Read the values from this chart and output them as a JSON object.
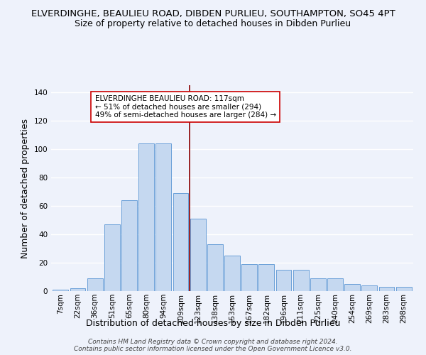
{
  "title": "ELVERDINGHE, BEAULIEU ROAD, DIBDEN PURLIEU, SOUTHAMPTON, SO45 4PT",
  "subtitle": "Size of property relative to detached houses in Dibden Purlieu",
  "xlabel": "Distribution of detached houses by size in Dibden Purlieu",
  "ylabel": "Number of detached properties",
  "footnote1": "Contains HM Land Registry data © Crown copyright and database right 2024.",
  "footnote2": "Contains public sector information licensed under the Open Government Licence v3.0.",
  "bar_labels": [
    "7sqm",
    "22sqm",
    "36sqm",
    "51sqm",
    "65sqm",
    "80sqm",
    "94sqm",
    "109sqm",
    "123sqm",
    "138sqm",
    "153sqm",
    "167sqm",
    "182sqm",
    "196sqm",
    "211sqm",
    "225sqm",
    "240sqm",
    "254sqm",
    "269sqm",
    "283sqm",
    "298sqm"
  ],
  "bar_values": [
    1,
    2,
    9,
    47,
    64,
    104,
    104,
    69,
    51,
    33,
    25,
    19,
    19,
    15,
    15,
    9,
    9,
    5,
    4,
    3,
    3
  ],
  "bar_color": "#c5d8f0",
  "bar_edgecolor": "#6a9fd8",
  "background_color": "#eef2fb",
  "grid_color": "#ffffff",
  "ylim": [
    0,
    145
  ],
  "yticks": [
    0,
    20,
    40,
    60,
    80,
    100,
    120,
    140
  ],
  "marker_bin_index": 7,
  "marker_label_line1": "ELVERDINGHE BEAULIEU ROAD: 117sqm",
  "marker_label_line2": "← 51% of detached houses are smaller (294)",
  "marker_label_line3": "49% of semi-detached houses are larger (284) →",
  "marker_color": "#8b0000",
  "annotation_box_color": "#ffffff",
  "annotation_box_edgecolor": "#cc0000",
  "title_fontsize": 9.5,
  "subtitle_fontsize": 9,
  "axis_label_fontsize": 9,
  "tick_fontsize": 7.5,
  "annotation_fontsize": 7.5,
  "footnote_fontsize": 6.5
}
